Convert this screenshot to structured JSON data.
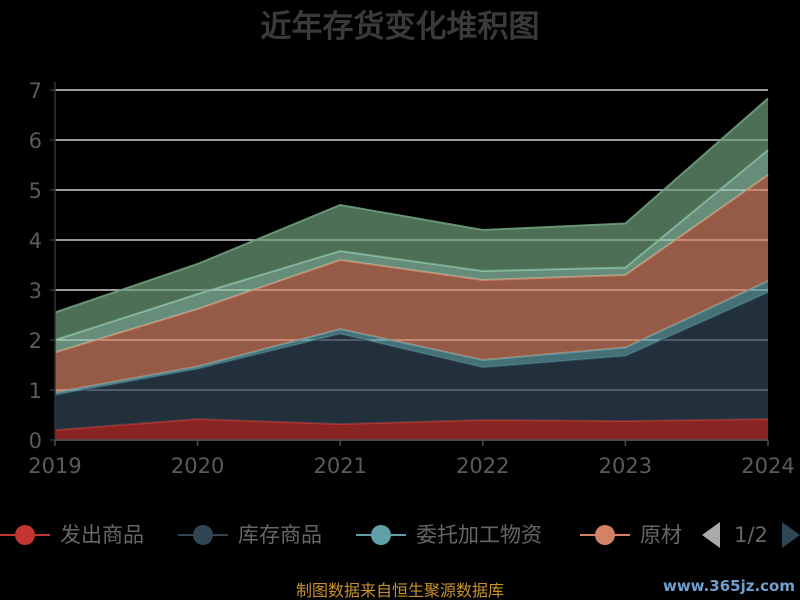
{
  "chart_data": {
    "type": "area",
    "stacked": true,
    "title": "近年存货变化堆积图",
    "x": [
      "2019",
      "2020",
      "2021",
      "2022",
      "2023",
      "2024"
    ],
    "ylim": [
      0,
      7
    ],
    "yticks": [
      "0",
      "1",
      "2",
      "3",
      "4",
      "5",
      "6",
      "7"
    ],
    "grid": true,
    "legend_position": "bottom",
    "series": [
      {
        "name": "发出商品",
        "color": "#c23531",
        "values": [
          0.2,
          0.42,
          0.32,
          0.4,
          0.38,
          0.42
        ]
      },
      {
        "name": "库存商品",
        "color": "#2f4554",
        "values": [
          0.7,
          1.0,
          1.8,
          1.05,
          1.3,
          2.53
        ]
      },
      {
        "name": "委托加工物资",
        "color": "#61a0a8",
        "values": [
          0.05,
          0.05,
          0.1,
          0.15,
          0.17,
          0.23
        ]
      },
      {
        "name": "原材料",
        "color": "#d48265",
        "values": [
          0.8,
          1.15,
          1.38,
          1.6,
          1.45,
          2.12
        ]
      },
      {
        "name": "",
        "color": "#91c7ae",
        "values": [
          0.25,
          0.3,
          0.18,
          0.18,
          0.15,
          0.5
        ]
      },
      {
        "name": "",
        "color": "#6e9e7b",
        "values": [
          0.55,
          0.6,
          0.92,
          0.82,
          0.88,
          1.03
        ]
      }
    ]
  },
  "legend": {
    "visible_items": [
      {
        "label": "发出商品",
        "color": "#c23531"
      },
      {
        "label": "库存商品",
        "color": "#2f4554"
      },
      {
        "label": "委托加工物资",
        "color": "#61a0a8"
      },
      {
        "label": "原材料",
        "display": "原材",
        "color": "#d48265"
      }
    ],
    "pager": "1/2"
  },
  "footer": "制图数据来自恒生聚源数据库",
  "watermark": "www.365jz.com"
}
